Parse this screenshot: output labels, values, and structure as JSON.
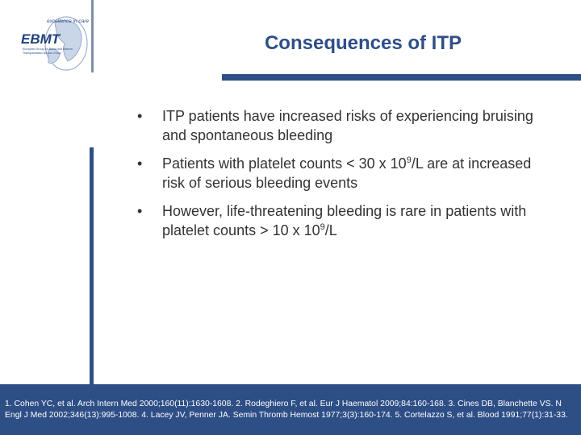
{
  "header": {
    "title": "Consequences of ITP",
    "logo": {
      "tagline": "excellence in care",
      "name": "EBMT",
      "subtitle_line1": "European Group for Blood and Marrow",
      "subtitle_line2": "Transplantation Nurses Group"
    }
  },
  "bullets": [
    {
      "text": "ITP patients have increased risks of experiencing bruising and spontaneous bleeding"
    },
    {
      "pre": "Patients with platelet counts < 30 x 10",
      "sup": "9",
      "post": "/L are at increased risk of serious bleeding events"
    },
    {
      "pre": "However, life-threatening bleeding is rare in patients with platelet counts > 10 x 10",
      "sup": "9",
      "post": "/L"
    }
  ],
  "bullet_glyph": "•",
  "references": "1. Cohen YC, et al. Arch Intern Med 2000;160(11):1630-1608. 2. Rodeghiero F, et al. Eur J Haematol 2009;84:160-168. 3. Cines DB, Blanchette VS. N Engl J Med 2002;346(13):995-1008. 4. Lacey JV, Penner JA. Semin Thromb Hemost 1977;3(3):160-174. 5. Cortelazzo S, et al. Blood 1991;77(1):31-33.",
  "colors": {
    "brand_blue": "#2e4e86",
    "text": "#333333"
  }
}
